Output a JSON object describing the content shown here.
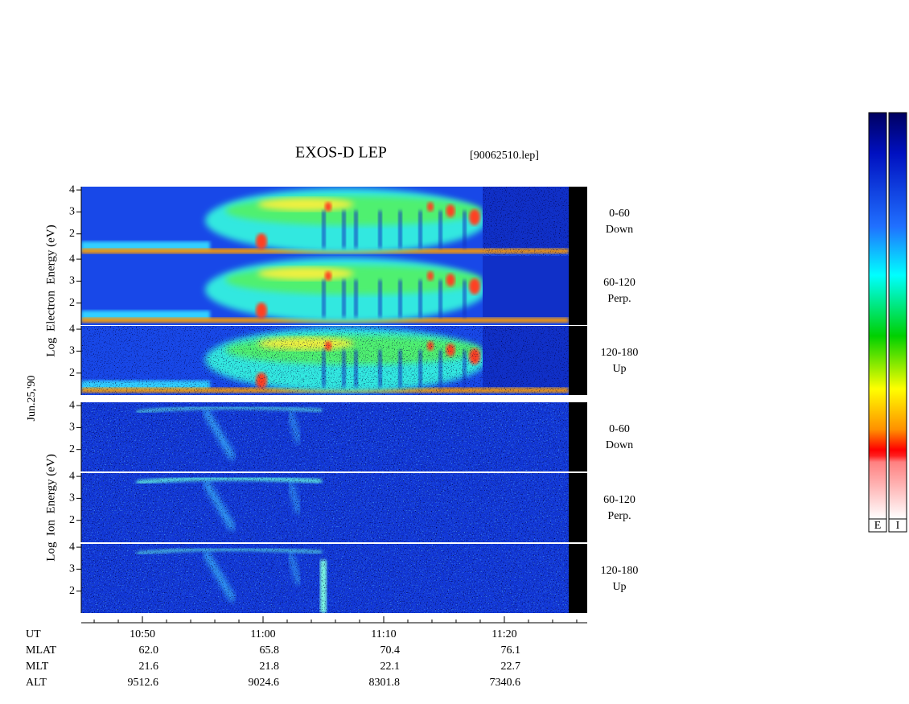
{
  "chart_data": {
    "type": "spectrogram",
    "title": "EXOS-D LEP",
    "file_label": "[90062510.lep]",
    "date_label": "Jun.25,'90",
    "xlim": [
      44.93,
      86.87
    ],
    "xticks": [
      {
        "value": 50,
        "label": "10:50"
      },
      {
        "value": 60,
        "label": "11:00"
      },
      {
        "value": 70,
        "label": "11:10"
      },
      {
        "value": 80,
        "label": "11:20"
      }
    ],
    "xticks_minor": [
      46,
      48,
      52,
      54,
      56,
      58,
      62,
      64,
      66,
      68,
      72,
      74,
      76,
      78,
      82,
      84,
      86
    ],
    "ylim": [
      1,
      4.15
    ],
    "yticks": [
      2,
      3,
      4
    ],
    "groups": [
      {
        "ylabel": "Log  Electron  Energy (eV)",
        "colorbar_label": "E",
        "panels": [
          {
            "angle": "0-60",
            "direction": "Down"
          },
          {
            "angle": "60-120",
            "direction": "Perp."
          },
          {
            "angle": "120-180",
            "direction": "Up"
          }
        ]
      },
      {
        "ylabel": "Log  Ion  Energy (eV)",
        "colorbar_label": "I",
        "panels": [
          {
            "angle": "0-60",
            "direction": "Down"
          },
          {
            "angle": "60-120",
            "direction": "Perp."
          },
          {
            "angle": "120-180",
            "direction": "Up"
          }
        ]
      }
    ],
    "ut_label": "UT",
    "orbit": [
      {
        "label": "MLAT",
        "values": [
          "62.0",
          "65.8",
          "70.4",
          "76.1"
        ]
      },
      {
        "label": "MLT",
        "values": [
          "21.6",
          "21.8",
          "22.1",
          "22.7"
        ]
      },
      {
        "label": "ALT",
        "values": [
          "9512.6",
          "9024.6",
          "8301.8",
          "7340.6"
        ]
      }
    ]
  }
}
